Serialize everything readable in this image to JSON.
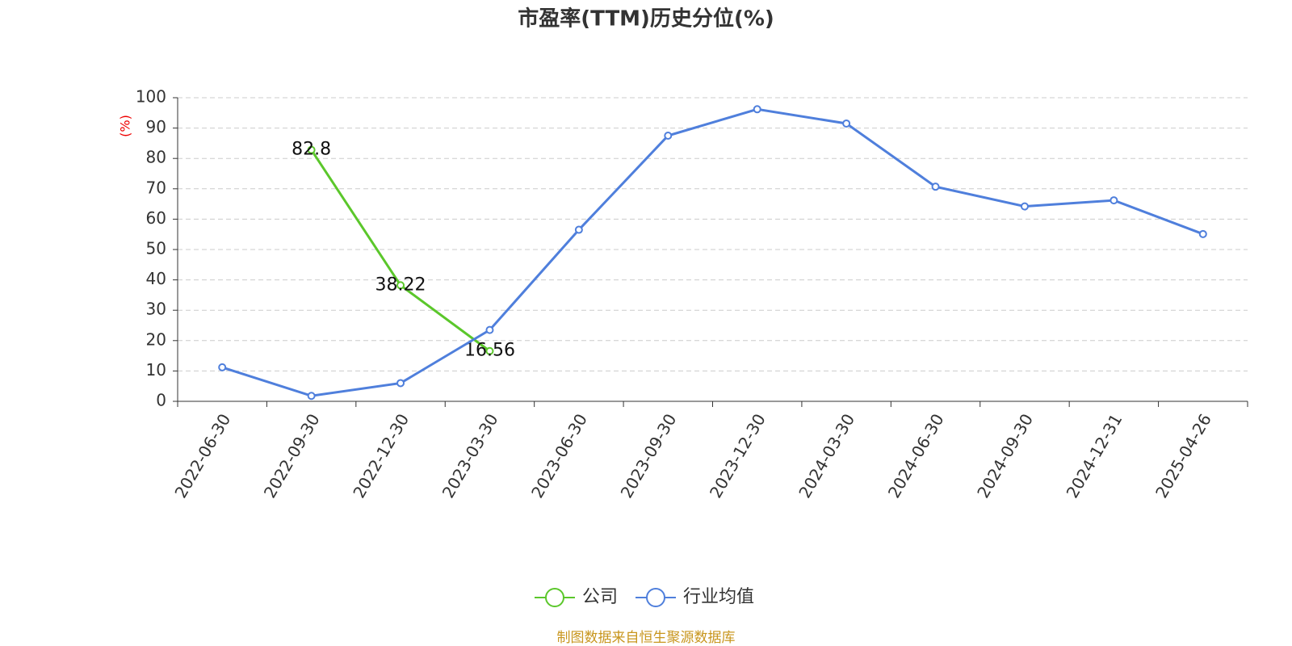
{
  "chart_data": {
    "type": "line",
    "title": "市盈率(TTM)历史分位(%)",
    "y_label": "(%)",
    "source": "制图数据来自恒生聚源数据库",
    "categories": [
      "2022-06-30",
      "2022-09-30",
      "2022-12-30",
      "2023-03-30",
      "2023-06-30",
      "2023-09-30",
      "2023-12-30",
      "2024-03-30",
      "2024-06-30",
      "2024-09-30",
      "2024-12-31",
      "2025-04-26"
    ],
    "series": [
      {
        "name": "公司",
        "color": "#5bc72b",
        "show_values": true,
        "values": [
          null,
          82.8,
          38.22,
          16.56,
          null,
          null,
          null,
          null,
          null,
          null,
          null,
          null
        ]
      },
      {
        "name": "行业均值",
        "color": "#4f7fdc",
        "show_values": false,
        "values": [
          11.2,
          1.8,
          6.0,
          23.5,
          56.5,
          87.5,
          96.2,
          91.5,
          70.7,
          64.2,
          66.2,
          55.1
        ]
      }
    ],
    "ylim": [
      0,
      100
    ],
    "yticks": [
      0,
      10,
      20,
      30,
      40,
      50,
      60,
      70,
      80,
      90,
      100
    ],
    "grid": true
  }
}
